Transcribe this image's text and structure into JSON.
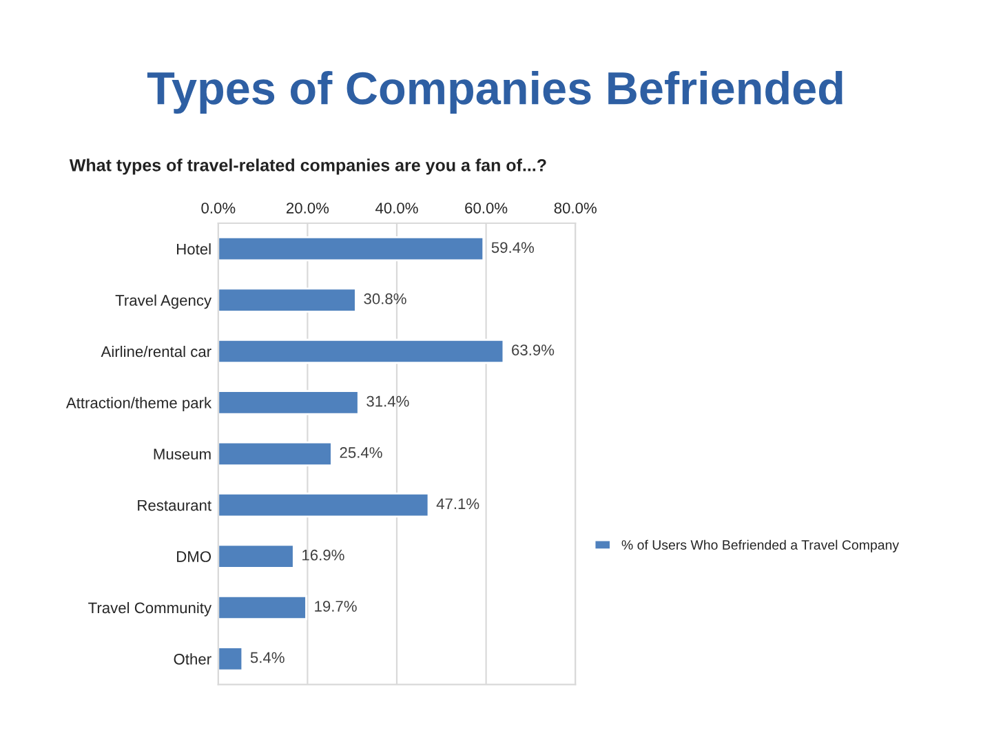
{
  "chart_data": {
    "type": "bar",
    "orientation": "horizontal",
    "title": "Types of Companies Befriended",
    "subtitle": "What types of travel-related companies are you a fan of...?",
    "categories": [
      "Hotel",
      "Travel Agency",
      "Airline/rental car",
      "Attraction/theme park",
      "Museum",
      "Restaurant",
      "DMO",
      "Travel Community",
      "Other"
    ],
    "series": [
      {
        "name": "% of Users Who Befriended a Travel Company",
        "color": "#4f81bd",
        "values": [
          59.4,
          30.8,
          63.9,
          31.4,
          25.4,
          47.1,
          16.9,
          19.7,
          5.4
        ],
        "value_labels": [
          "59.4%",
          "30.8%",
          "63.9%",
          "31.4%",
          "25.4%",
          "47.1%",
          "16.9%",
          "19.7%",
          "5.4%"
        ]
      }
    ],
    "xlim": [
      0,
      80
    ],
    "xticks": [
      {
        "value": 0,
        "label": "0.0%"
      },
      {
        "value": 20,
        "label": "20.0%"
      },
      {
        "value": 40,
        "label": "40.0%"
      },
      {
        "value": 60,
        "label": "60.0%"
      },
      {
        "value": 80,
        "label": "80.0%"
      }
    ],
    "grid": "x",
    "legend": "right"
  }
}
